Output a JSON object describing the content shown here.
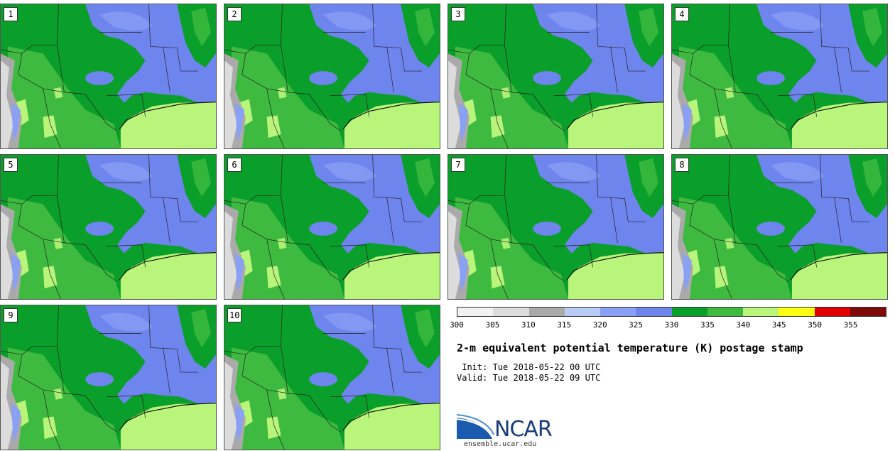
{
  "stamps": [
    {
      "label": "1"
    },
    {
      "label": "2"
    },
    {
      "label": "3"
    },
    {
      "label": "4"
    },
    {
      "label": "5"
    },
    {
      "label": "6"
    },
    {
      "label": "7"
    },
    {
      "label": "8"
    },
    {
      "label": "9"
    },
    {
      "label": "10"
    }
  ],
  "colorbar": {
    "colors": [
      "#f2f2f2",
      "#dcdcdc",
      "#aaaaaa",
      "#b8cbf5",
      "#8aa0f5",
      "#6f85ee",
      "#0a9e2a",
      "#3fba40",
      "#b8f57a",
      "#ffff14",
      "#e00000",
      "#7e0a0a"
    ],
    "tick_labels": [
      "300",
      "305",
      "310",
      "315",
      "320",
      "325",
      "330",
      "335",
      "340",
      "345",
      "350",
      "355"
    ]
  },
  "title": "2-m equivalent potential temperature (K) postage stamp",
  "init_line": " Init: Tue 2018-05-22 00 UTC",
  "valid_line": "Valid: Tue 2018-05-22 09 UTC",
  "logo": {
    "text": "NCAR",
    "url": "ensemble.ucar.edu"
  },
  "map_colors": {
    "water": "#6f85ee",
    "cold": "#8aa0f5",
    "dark_green": "#0a9e2a",
    "mid_green": "#3fba40",
    "light_green": "#b8f57a",
    "gray": "#aaaaaa",
    "light_gray": "#dcdcdc",
    "yellow": "#ffff14"
  }
}
